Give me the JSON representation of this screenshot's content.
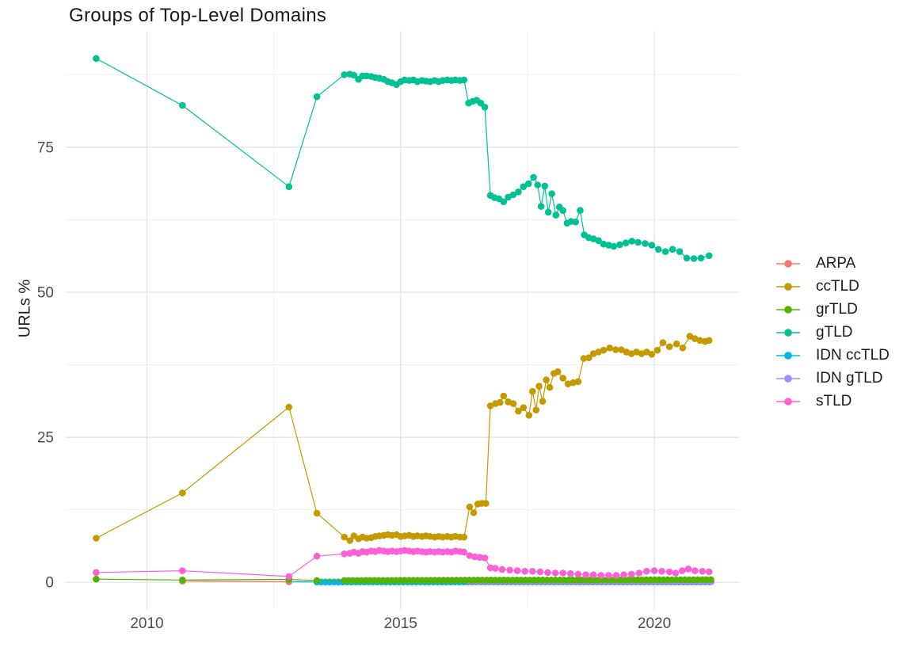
{
  "chart_data": {
    "type": "line",
    "title": "Groups of Top-Level Domains",
    "xlabel": "",
    "ylabel": "URLs %",
    "x_ticks": [
      2010,
      2015,
      2020
    ],
    "y_ticks": [
      0,
      25,
      50,
      75
    ],
    "x_minor": [
      2012.5,
      2017.5
    ],
    "y_minor": [
      12.5,
      37.5,
      62.5,
      87.5
    ],
    "xlim": [
      2008.4,
      2021.67
    ],
    "ylim": [
      -4.75,
      95.05
    ],
    "grid": "major+minor",
    "legend_position": "right",
    "axis_text_color": "#4d4d4d",
    "major_grid_color": "#e2e2e2",
    "minor_grid_color": "#efefef",
    "draw_order": [
      "IDN ccTLD",
      "IDN gTLD",
      "ARPA",
      "grTLD",
      "ccTLD",
      "gTLD",
      "sTLD"
    ],
    "series": [
      {
        "name": "ARPA",
        "color": "#F8766D",
        "points": [
          [
            2010.7,
            0.2
          ],
          [
            2012.8,
            0.1
          ]
        ]
      },
      {
        "name": "ccTLD",
        "color": "#C49A00",
        "points": [
          [
            2009.0,
            7.6
          ],
          [
            2010.7,
            15.4
          ],
          [
            2012.8,
            30.2
          ],
          [
            2013.35,
            11.9
          ],
          [
            2013.89,
            7.8
          ],
          [
            2014.0,
            7.2
          ],
          [
            2014.08,
            8.0
          ],
          [
            2014.17,
            7.5
          ],
          [
            2014.25,
            7.8
          ],
          [
            2014.33,
            7.6
          ],
          [
            2014.42,
            7.7
          ],
          [
            2014.5,
            7.9
          ],
          [
            2014.58,
            8.0
          ],
          [
            2014.67,
            8.1
          ],
          [
            2014.75,
            8.2
          ],
          [
            2014.83,
            8.1
          ],
          [
            2014.92,
            8.2
          ],
          [
            2015.0,
            7.9
          ],
          [
            2015.08,
            8.0
          ],
          [
            2015.17,
            8.1
          ],
          [
            2015.25,
            7.9
          ],
          [
            2015.33,
            8.0
          ],
          [
            2015.42,
            7.9
          ],
          [
            2015.5,
            8.0
          ],
          [
            2015.58,
            7.9
          ],
          [
            2015.67,
            7.8
          ],
          [
            2015.75,
            7.9
          ],
          [
            2015.83,
            7.8
          ],
          [
            2015.92,
            7.9
          ],
          [
            2016.0,
            7.8
          ],
          [
            2016.08,
            7.9
          ],
          [
            2016.17,
            7.8
          ],
          [
            2016.25,
            7.8
          ],
          [
            2016.36,
            13.0
          ],
          [
            2016.44,
            12.0
          ],
          [
            2016.52,
            13.5
          ],
          [
            2016.6,
            13.6
          ],
          [
            2016.68,
            13.6
          ],
          [
            2016.77,
            30.4
          ],
          [
            2016.87,
            30.8
          ],
          [
            2016.96,
            31.0
          ],
          [
            2017.03,
            32.1
          ],
          [
            2017.12,
            31.1
          ],
          [
            2017.22,
            30.8
          ],
          [
            2017.32,
            29.5
          ],
          [
            2017.42,
            30.1
          ],
          [
            2017.53,
            28.8
          ],
          [
            2017.6,
            32.9
          ],
          [
            2017.67,
            29.7
          ],
          [
            2017.73,
            33.8
          ],
          [
            2017.8,
            31.2
          ],
          [
            2017.87,
            34.9
          ],
          [
            2017.94,
            33.6
          ],
          [
            2018.02,
            36.0
          ],
          [
            2018.1,
            36.3
          ],
          [
            2018.2,
            35.2
          ],
          [
            2018.3,
            34.2
          ],
          [
            2018.4,
            34.4
          ],
          [
            2018.5,
            34.6
          ],
          [
            2018.61,
            38.6
          ],
          [
            2018.71,
            38.7
          ],
          [
            2018.8,
            39.4
          ],
          [
            2018.9,
            39.7
          ],
          [
            2019.0,
            40.0
          ],
          [
            2019.12,
            40.4
          ],
          [
            2019.24,
            40.1
          ],
          [
            2019.35,
            40.1
          ],
          [
            2019.45,
            39.7
          ],
          [
            2019.55,
            39.4
          ],
          [
            2019.65,
            39.7
          ],
          [
            2019.75,
            39.4
          ],
          [
            2019.85,
            39.7
          ],
          [
            2019.95,
            39.3
          ],
          [
            2020.06,
            40.0
          ],
          [
            2020.17,
            41.3
          ],
          [
            2020.3,
            40.6
          ],
          [
            2020.44,
            41.1
          ],
          [
            2020.56,
            40.4
          ],
          [
            2020.7,
            42.4
          ],
          [
            2020.8,
            42.0
          ],
          [
            2020.9,
            41.7
          ],
          [
            2021.0,
            41.5
          ],
          [
            2021.08,
            41.7
          ]
        ]
      },
      {
        "name": "grTLD",
        "color": "#53B400",
        "points": [
          [
            2009.0,
            0.55
          ],
          [
            2010.7,
            0.4
          ],
          [
            2012.8,
            0.5
          ],
          [
            2013.35,
            0.3
          ]
        ],
        "dense": {
          "from": 2013.89,
          "to": 2021.08,
          "step": 0.085,
          "v_from": 0.3,
          "v_to": 0.45
        }
      },
      {
        "name": "gTLD",
        "color": "#00C094",
        "points": [
          [
            2009.0,
            90.3
          ],
          [
            2010.7,
            82.2
          ],
          [
            2012.8,
            68.2
          ],
          [
            2013.35,
            83.7
          ],
          [
            2013.89,
            87.5
          ],
          [
            2014.0,
            87.6
          ],
          [
            2014.08,
            87.4
          ],
          [
            2014.17,
            86.7
          ],
          [
            2014.25,
            87.3
          ],
          [
            2014.33,
            87.3
          ],
          [
            2014.42,
            87.2
          ],
          [
            2014.5,
            87.0
          ],
          [
            2014.58,
            86.9
          ],
          [
            2014.67,
            86.7
          ],
          [
            2014.75,
            86.3
          ],
          [
            2014.83,
            86.1
          ],
          [
            2014.92,
            85.8
          ],
          [
            2015.0,
            86.3
          ],
          [
            2015.08,
            86.6
          ],
          [
            2015.17,
            86.5
          ],
          [
            2015.25,
            86.6
          ],
          [
            2015.33,
            86.3
          ],
          [
            2015.42,
            86.5
          ],
          [
            2015.5,
            86.4
          ],
          [
            2015.58,
            86.3
          ],
          [
            2015.67,
            86.5
          ],
          [
            2015.75,
            86.3
          ],
          [
            2015.83,
            86.5
          ],
          [
            2015.92,
            86.6
          ],
          [
            2016.0,
            86.5
          ],
          [
            2016.08,
            86.6
          ],
          [
            2016.17,
            86.5
          ],
          [
            2016.25,
            86.6
          ],
          [
            2016.34,
            82.6
          ],
          [
            2016.42,
            82.9
          ],
          [
            2016.5,
            83.1
          ],
          [
            2016.58,
            82.6
          ],
          [
            2016.66,
            81.9
          ],
          [
            2016.77,
            66.7
          ],
          [
            2016.85,
            66.3
          ],
          [
            2016.94,
            66.1
          ],
          [
            2017.03,
            65.6
          ],
          [
            2017.12,
            66.4
          ],
          [
            2017.22,
            66.8
          ],
          [
            2017.32,
            67.3
          ],
          [
            2017.42,
            68.2
          ],
          [
            2017.52,
            68.7
          ],
          [
            2017.62,
            69.8
          ],
          [
            2017.7,
            68.5
          ],
          [
            2017.77,
            64.8
          ],
          [
            2017.84,
            68.3
          ],
          [
            2017.91,
            63.8
          ],
          [
            2017.98,
            67.0
          ],
          [
            2018.06,
            63.3
          ],
          [
            2018.13,
            64.7
          ],
          [
            2018.2,
            64.1
          ],
          [
            2018.28,
            61.9
          ],
          [
            2018.36,
            62.2
          ],
          [
            2018.45,
            62.1
          ],
          [
            2018.54,
            64.1
          ],
          [
            2018.62,
            59.9
          ],
          [
            2018.71,
            59.4
          ],
          [
            2018.8,
            59.2
          ],
          [
            2018.9,
            58.9
          ],
          [
            2019.0,
            58.3
          ],
          [
            2019.1,
            58.1
          ],
          [
            2019.2,
            57.9
          ],
          [
            2019.32,
            58.2
          ],
          [
            2019.44,
            58.5
          ],
          [
            2019.56,
            58.8
          ],
          [
            2019.68,
            58.6
          ],
          [
            2019.82,
            58.4
          ],
          [
            2019.95,
            58.1
          ],
          [
            2020.08,
            57.4
          ],
          [
            2020.22,
            57.0
          ],
          [
            2020.36,
            57.4
          ],
          [
            2020.5,
            57.0
          ],
          [
            2020.64,
            55.9
          ],
          [
            2020.78,
            55.8
          ],
          [
            2020.92,
            55.9
          ],
          [
            2021.08,
            56.3
          ]
        ]
      },
      {
        "name": "IDN ccTLD",
        "color": "#00B6EB",
        "points": [
          [
            2012.8,
            0.1
          ]
        ],
        "dense": {
          "from": 2013.35,
          "to": 2021.08,
          "step": 0.085,
          "v_from": 0.05,
          "v_to": 0.05
        }
      },
      {
        "name": "IDN gTLD",
        "color": "#A58AFF",
        "points": [],
        "dense": {
          "from": 2016.36,
          "to": 2021.08,
          "step": 0.085,
          "v_from": 0.1,
          "v_to": 0.1
        }
      },
      {
        "name": "sTLD",
        "color": "#FB61D7",
        "points": [
          [
            2009.0,
            1.7
          ],
          [
            2010.7,
            2.0
          ],
          [
            2012.8,
            1.0
          ],
          [
            2013.35,
            4.5
          ],
          [
            2013.89,
            4.9
          ],
          [
            2014.0,
            5.0
          ],
          [
            2014.08,
            5.2
          ],
          [
            2014.17,
            5.0
          ],
          [
            2014.25,
            5.3
          ],
          [
            2014.33,
            5.2
          ],
          [
            2014.42,
            5.4
          ],
          [
            2014.5,
            5.3
          ],
          [
            2014.58,
            5.5
          ],
          [
            2014.67,
            5.4
          ],
          [
            2014.75,
            5.3
          ],
          [
            2014.83,
            5.4
          ],
          [
            2014.92,
            5.3
          ],
          [
            2015.0,
            5.4
          ],
          [
            2015.08,
            5.5
          ],
          [
            2015.17,
            5.4
          ],
          [
            2015.25,
            5.3
          ],
          [
            2015.33,
            5.4
          ],
          [
            2015.42,
            5.3
          ],
          [
            2015.5,
            5.2
          ],
          [
            2015.58,
            5.3
          ],
          [
            2015.67,
            5.2
          ],
          [
            2015.75,
            5.3
          ],
          [
            2015.83,
            5.2
          ],
          [
            2015.92,
            5.3
          ],
          [
            2016.0,
            5.2
          ],
          [
            2016.08,
            5.4
          ],
          [
            2016.17,
            5.3
          ],
          [
            2016.25,
            5.2
          ],
          [
            2016.36,
            4.6
          ],
          [
            2016.46,
            4.4
          ],
          [
            2016.56,
            4.3
          ],
          [
            2016.66,
            4.2
          ],
          [
            2016.77,
            2.5
          ],
          [
            2016.87,
            2.4
          ],
          [
            2017.0,
            2.2
          ],
          [
            2017.15,
            2.1
          ],
          [
            2017.3,
            2.0
          ],
          [
            2017.45,
            1.9
          ],
          [
            2017.6,
            1.9
          ],
          [
            2017.75,
            1.8
          ],
          [
            2017.9,
            1.7
          ],
          [
            2018.05,
            1.6
          ],
          [
            2018.2,
            1.6
          ],
          [
            2018.35,
            1.5
          ],
          [
            2018.5,
            1.4
          ],
          [
            2018.65,
            1.3
          ],
          [
            2018.8,
            1.3
          ],
          [
            2018.95,
            1.2
          ],
          [
            2019.1,
            1.2
          ],
          [
            2019.25,
            1.2
          ],
          [
            2019.4,
            1.3
          ],
          [
            2019.55,
            1.4
          ],
          [
            2019.7,
            1.6
          ],
          [
            2019.85,
            1.9
          ],
          [
            2020.0,
            2.0
          ],
          [
            2020.15,
            1.9
          ],
          [
            2020.3,
            1.8
          ],
          [
            2020.42,
            1.6
          ],
          [
            2020.55,
            2.0
          ],
          [
            2020.67,
            2.3
          ],
          [
            2020.8,
            2.0
          ],
          [
            2020.95,
            1.9
          ],
          [
            2021.08,
            1.8
          ]
        ]
      }
    ]
  }
}
